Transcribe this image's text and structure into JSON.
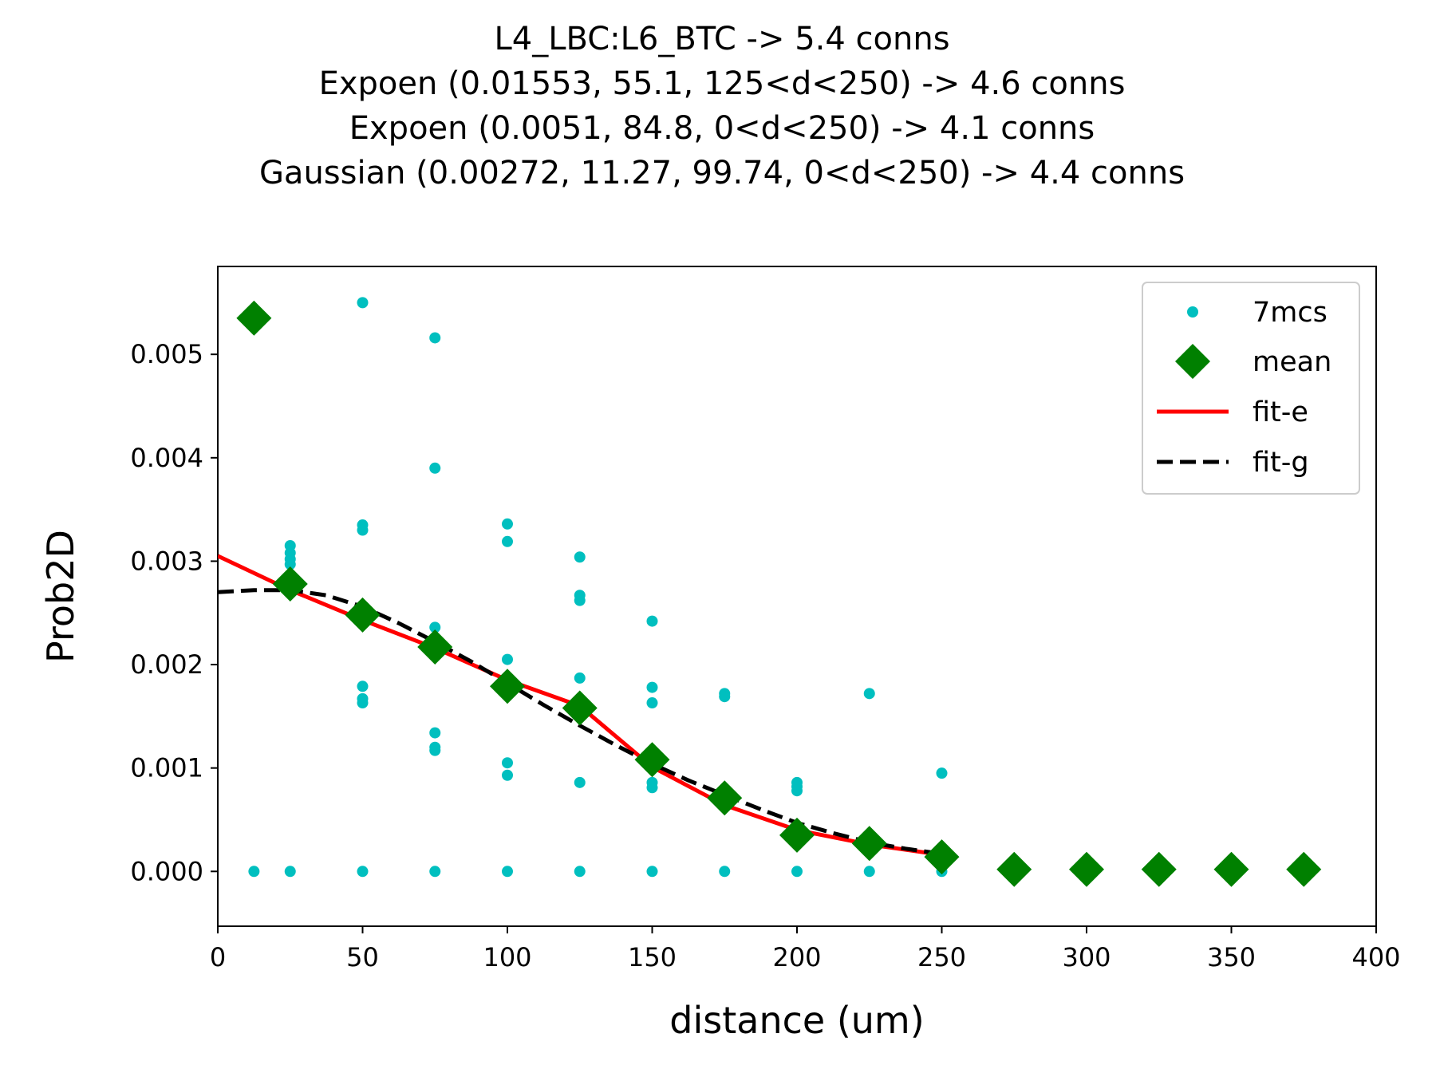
{
  "chart_data": {
    "type": "scatter",
    "title_lines": [
      "L4_LBC:L6_BTC -> 5.4 conns",
      "Expoen (0.01553, 55.1, 125<d<250) -> 4.6 conns",
      "Expoen (0.0051, 84.8, 0<d<250) -> 4.1 conns",
      "Gaussian (0.00272, 11.27, 99.74, 0<d<250) -> 4.4 conns"
    ],
    "xlabel": "distance (um)",
    "ylabel": "Prob2D",
    "xlim": [
      0,
      400
    ],
    "ylim": [
      -0.00053,
      0.00585
    ],
    "xticks": [
      0,
      50,
      100,
      150,
      200,
      250,
      300,
      350,
      400
    ],
    "xtick_labels": [
      "0",
      "50",
      "100",
      "150",
      "200",
      "250",
      "300",
      "350",
      "400"
    ],
    "yticks": [
      0,
      0.001,
      0.002,
      0.003,
      0.004,
      0.005
    ],
    "ytick_labels": [
      "0.000",
      "0.001",
      "0.002",
      "0.003",
      "0.004",
      "0.005"
    ],
    "grid": false,
    "legend_position": "top-right",
    "legend": [
      "7mcs",
      "mean",
      "fit-e",
      "fit-g"
    ],
    "colors": {
      "samples": "#00bfbf",
      "mean": "#008000",
      "fit_e": "#ff0000",
      "fit_g": "#000000"
    },
    "series": [
      {
        "name": "7mcs",
        "style": "dots",
        "points": [
          [
            12.5,
            0
          ],
          [
            25,
            0
          ],
          [
            25,
            0.00315
          ],
          [
            25,
            0.00308
          ],
          [
            25,
            0.00302
          ],
          [
            25,
            0.00297
          ],
          [
            50,
            0
          ],
          [
            50,
            0.0055
          ],
          [
            50,
            0.00335
          ],
          [
            50,
            0.0033
          ],
          [
            50,
            0.00179
          ],
          [
            50,
            0.00167
          ],
          [
            50,
            0.00163
          ],
          [
            75,
            0
          ],
          [
            75,
            0.00516
          ],
          [
            75,
            0.0039
          ],
          [
            75,
            0.00236
          ],
          [
            75,
            0.00134
          ],
          [
            75,
            0.0012
          ],
          [
            75,
            0.00117
          ],
          [
            100,
            0
          ],
          [
            100,
            0.00336
          ],
          [
            100,
            0.00319
          ],
          [
            100,
            0.00205
          ],
          [
            100,
            0.00105
          ],
          [
            100,
            0.00093
          ],
          [
            125,
            0
          ],
          [
            125,
            0.00304
          ],
          [
            125,
            0.00267
          ],
          [
            125,
            0.00262
          ],
          [
            125,
            0.00187
          ],
          [
            125,
            0.00086
          ],
          [
            150,
            0
          ],
          [
            150,
            0.00242
          ],
          [
            150,
            0.00178
          ],
          [
            150,
            0.00163
          ],
          [
            150,
            0.00086
          ],
          [
            150,
            0.00081
          ],
          [
            175,
            0
          ],
          [
            175,
            0.00172
          ],
          [
            175,
            0.00169
          ],
          [
            200,
            0
          ],
          [
            200,
            0.00086
          ],
          [
            200,
            0.00082
          ],
          [
            200,
            0.00078
          ],
          [
            225,
            0
          ],
          [
            225,
            0.00172
          ],
          [
            250,
            0
          ],
          [
            250,
            0.00095
          ]
        ]
      },
      {
        "name": "mean",
        "style": "diamonds",
        "points": [
          [
            12.5,
            0.00535
          ],
          [
            25,
            0.00278
          ],
          [
            50,
            0.00248
          ],
          [
            75,
            0.00217
          ],
          [
            100,
            0.00179
          ],
          [
            125,
            0.00158
          ],
          [
            150,
            0.00108
          ],
          [
            175,
            0.00071
          ],
          [
            200,
            0.00035
          ],
          [
            225,
            0.00027
          ],
          [
            250,
            0.00014
          ],
          [
            275,
            2e-05
          ],
          [
            300,
            2e-05
          ],
          [
            325,
            2e-05
          ],
          [
            350,
            2e-05
          ],
          [
            375,
            2e-05
          ]
        ]
      },
      {
        "name": "fit-e",
        "style": "solid",
        "points": [
          [
            0,
            0.00305
          ],
          [
            25,
            0.00272
          ],
          [
            50,
            0.00243
          ],
          [
            75,
            0.00216
          ],
          [
            100,
            0.00185
          ],
          [
            125,
            0.0016
          ],
          [
            150,
            0.00101
          ],
          [
            175,
            0.00064
          ],
          [
            200,
            0.0004
          ],
          [
            225,
            0.00026
          ],
          [
            250,
            0.00016
          ]
        ]
      },
      {
        "name": "fit-g",
        "style": "dashed",
        "points": [
          [
            0,
            0.0027
          ],
          [
            12.5,
            0.00272
          ],
          [
            25,
            0.00272
          ],
          [
            37.5,
            0.00267
          ],
          [
            50,
            0.00256
          ],
          [
            62.5,
            0.0024
          ],
          [
            75,
            0.00222
          ],
          [
            87.5,
            0.00203
          ],
          [
            100,
            0.00182
          ],
          [
            112.5,
            0.00161
          ],
          [
            125,
            0.00141
          ],
          [
            137.5,
            0.00122
          ],
          [
            150,
            0.00104
          ],
          [
            162.5,
            0.00088
          ],
          [
            175,
            0.00074
          ],
          [
            187.5,
            0.0006
          ],
          [
            200,
            0.00047
          ],
          [
            212.5,
            0.00037
          ],
          [
            225,
            0.00028
          ],
          [
            237.5,
            0.00022
          ],
          [
            250,
            0.00017
          ]
        ]
      }
    ]
  }
}
